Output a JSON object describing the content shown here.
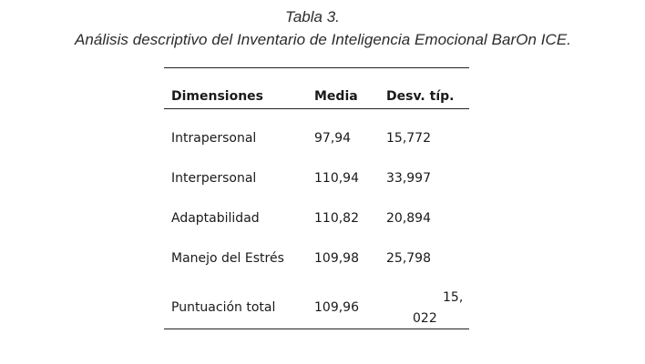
{
  "caption": {
    "label": "Tabla 3.",
    "title": "Análisis descriptivo del Inventario de Inteligencia Emocional BarOn ICE."
  },
  "table": {
    "headers": [
      "Dimensiones",
      "Media",
      "Desv. típ."
    ],
    "rows": [
      {
        "dimension": "Intrapersonal",
        "mean": "97,94",
        "sd": "15,772"
      },
      {
        "dimension": "Interpersonal",
        "mean": "110,94",
        "sd": "33,997"
      },
      {
        "dimension": "Adaptabilidad",
        "mean": "110,82",
        "sd": "20,894"
      },
      {
        "dimension": "Manejo del Estrés",
        "mean": "109,98",
        "sd": "25,798"
      },
      {
        "dimension": "Puntuación total",
        "mean": "109,96",
        "sd_line1": "15,",
        "sd_line2": "022"
      }
    ]
  }
}
